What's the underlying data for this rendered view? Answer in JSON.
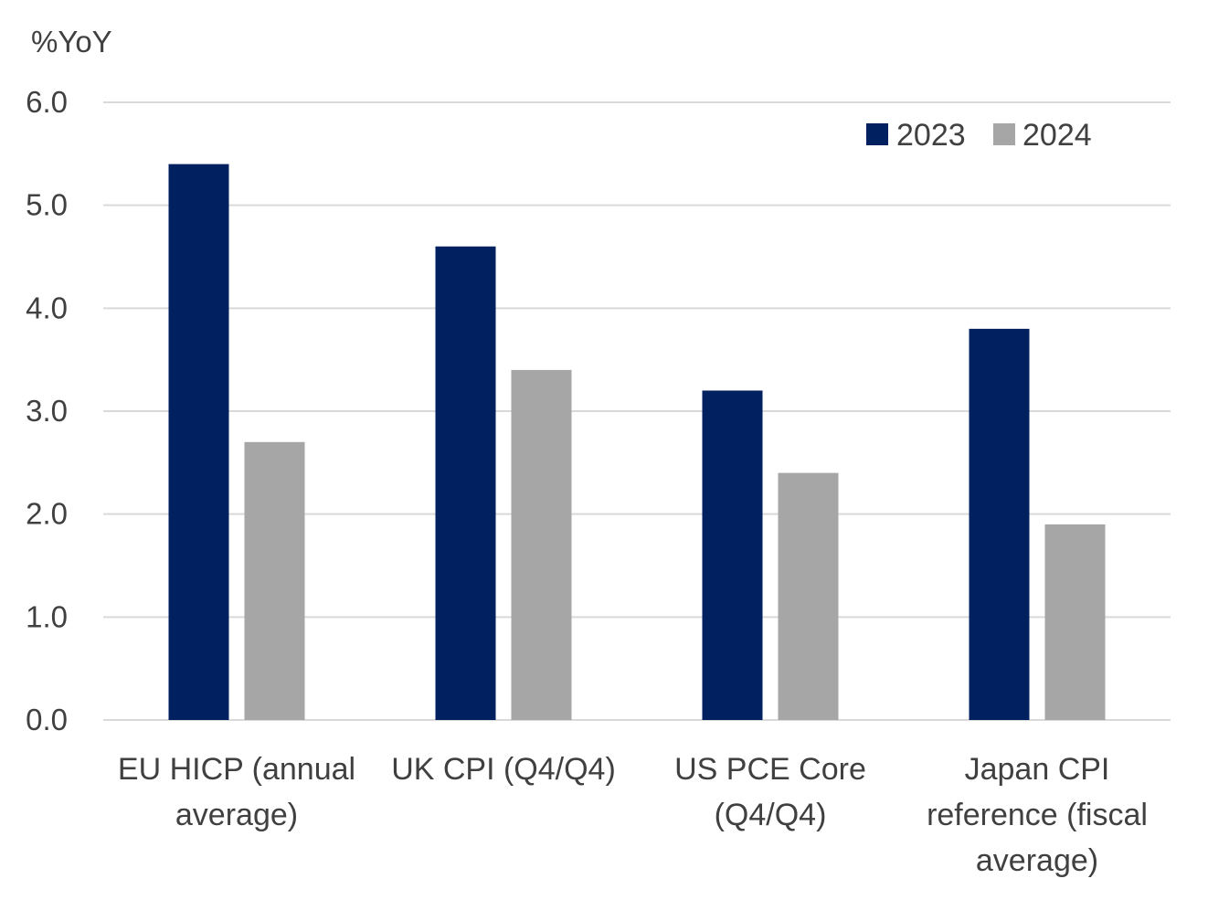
{
  "chart_data": {
    "type": "bar",
    "title": "",
    "unit_label": "%YoY",
    "xlabel": "",
    "ylabel": "",
    "ylim": [
      0,
      6
    ],
    "yticks": [
      "0.0",
      "1.0",
      "2.0",
      "3.0",
      "4.0",
      "5.0",
      "6.0"
    ],
    "grid": true,
    "legend_position": "top-right",
    "categories": [
      [
        "EU HICP (annual",
        "average)"
      ],
      [
        "UK CPI (Q4/Q4)"
      ],
      [
        "US PCE Core",
        "(Q4/Q4)"
      ],
      [
        "Japan CPI",
        "reference (fiscal",
        "average)"
      ]
    ],
    "series": [
      {
        "name": "2023",
        "color": "#002060",
        "values": [
          5.4,
          4.6,
          3.2,
          3.8
        ]
      },
      {
        "name": "2024",
        "color": "#a6a6a6",
        "values": [
          2.7,
          3.4,
          2.4,
          1.9
        ]
      }
    ]
  }
}
